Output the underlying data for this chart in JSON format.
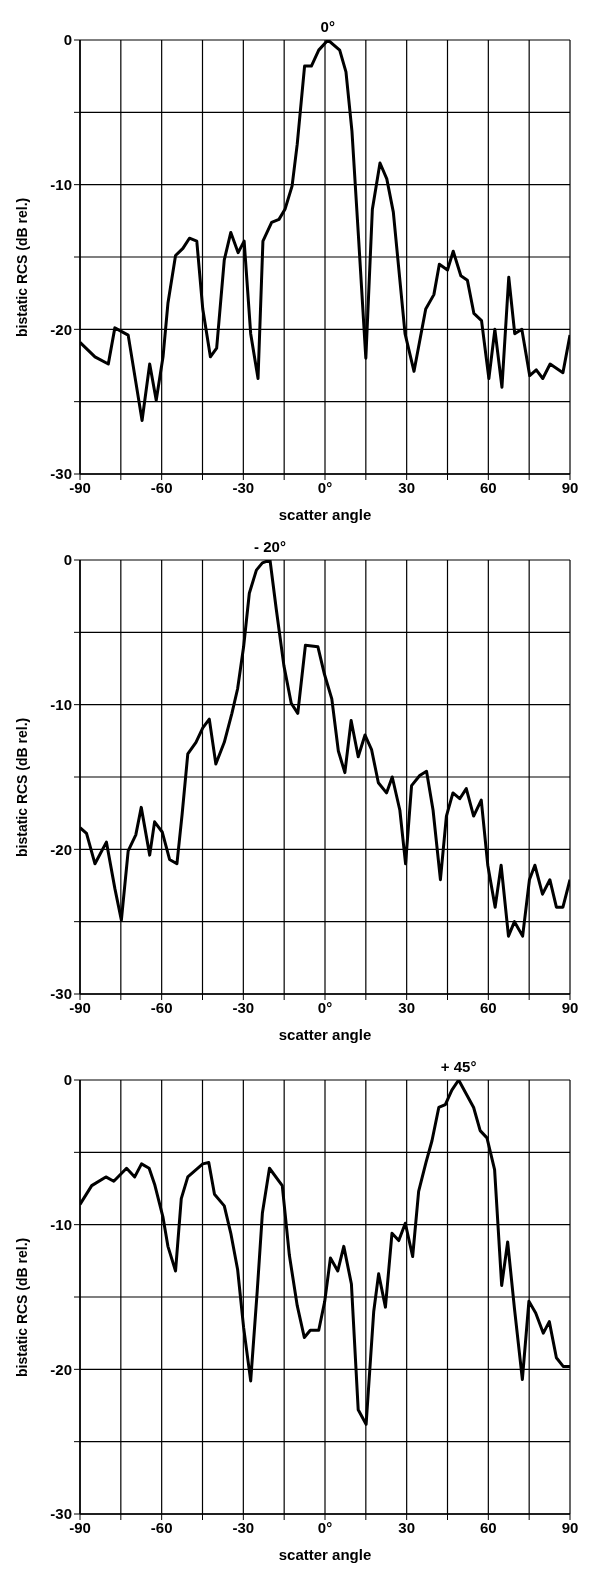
{
  "chart_data": [
    {
      "type": "line",
      "xlabel": "scatter angle",
      "ylabel": "bistatic RCS  (dB rel.)",
      "annotations": [
        {
          "text": "0°",
          "x": 1,
          "y": 0
        }
      ],
      "xlim": [
        -90,
        90
      ],
      "ylim": [
        -30,
        0
      ],
      "xticks": [
        -90,
        {
          "value": -75,
          "label": null
        },
        -60,
        {
          "value": -45,
          "label": null
        },
        -30,
        {
          "value": -15,
          "label": null
        },
        {
          "value": 0,
          "label": "0°"
        },
        {
          "value": 15,
          "label": null
        },
        30,
        {
          "value": 45,
          "label": null
        },
        60,
        {
          "value": 75,
          "label": null
        },
        90
      ],
      "yticks": [
        -30,
        {
          "value": -25,
          "label": null
        },
        -20,
        {
          "value": -15,
          "label": null
        },
        -10,
        {
          "value": -5,
          "label": null
        },
        0
      ],
      "grid": true,
      "marker": "none",
      "line_style": "solid",
      "series": [
        {
          "color": "#000000",
          "x": [
            -90,
            -84.5,
            -79.6,
            -77.2,
            -72.3,
            -67.2,
            -64.4,
            -62,
            -59.5,
            -57.7,
            -54.9,
            -52.2,
            -49.8,
            -47.1,
            -44.9,
            -42.1,
            -39.8,
            -37,
            -34.6,
            -31.9,
            -29.7,
            -27.3,
            -24.6,
            -22.8,
            -19.6,
            -16.9,
            -14.7,
            -12.1,
            -10.2,
            -7.5,
            -5,
            -2.3,
            1.1,
            5.4,
            7.7,
            9.9,
            12.3,
            15,
            17.4,
            20.2,
            22.7,
            25.1,
            29.4,
            32.7,
            37,
            40,
            42,
            45,
            47.1,
            49.9,
            52.3,
            54.7,
            57.5,
            60.2,
            62.4,
            65,
            67.5,
            69.7,
            72.3,
            75.2,
            77.6,
            80,
            82.7,
            87.4,
            90
          ],
          "values": [
            -20.9,
            -21.9,
            -22.4,
            -19.9,
            -20.4,
            -26.3,
            -22.4,
            -24.9,
            -21.9,
            -18.2,
            -14.9,
            -14.4,
            -13.7,
            -13.9,
            -18.6,
            -21.9,
            -21.3,
            -15.2,
            -13.3,
            -14.7,
            -13.9,
            -20.3,
            -23.4,
            -13.9,
            -12.6,
            -12.4,
            -11.7,
            -10.1,
            -7.2,
            -1.8,
            -1.8,
            -0.7,
            0,
            -0.7,
            -2.2,
            -6.3,
            -13.6,
            -22,
            -11.7,
            -8.5,
            -9.6,
            -11.9,
            -20.3,
            -22.9,
            -18.6,
            -17.6,
            -15.5,
            -15.9,
            -14.6,
            -16.3,
            -16.6,
            -18.9,
            -19.4,
            -23.4,
            -20,
            -24,
            -16.4,
            -20.3,
            -20,
            -23.2,
            -22.8,
            -23.4,
            -22.4,
            -23,
            -20.4
          ]
        }
      ]
    },
    {
      "type": "line",
      "xlabel": "scatter angle",
      "ylabel": "bistatic RCS  (dB rel.)",
      "annotations": [
        {
          "text": "- 20°",
          "x": -20.2,
          "y": 0
        }
      ],
      "xlim": [
        -90,
        90
      ],
      "ylim": [
        -30,
        0
      ],
      "xticks": [
        -90,
        {
          "value": -75,
          "label": null
        },
        -60,
        {
          "value": -45,
          "label": null
        },
        -30,
        {
          "value": -15,
          "label": null
        },
        {
          "value": 0,
          "label": "0°"
        },
        {
          "value": 15,
          "label": null
        },
        30,
        {
          "value": 45,
          "label": null
        },
        60,
        {
          "value": 75,
          "label": null
        },
        90
      ],
      "yticks": [
        -30,
        {
          "value": -25,
          "label": null
        },
        -20,
        {
          "value": -15,
          "label": null
        },
        -10,
        {
          "value": -5,
          "label": null
        },
        0
      ],
      "grid": true,
      "marker": "none",
      "line_style": "solid",
      "series": [
        {
          "color": "#000000",
          "x": [
            -90,
            -87.6,
            -84.5,
            -80.3,
            -77.2,
            -74.8,
            -72.3,
            -69.5,
            -67.5,
            -64.4,
            -62.6,
            -59.8,
            -57.1,
            -54.4,
            -52.5,
            -50.4,
            -47.4,
            -44.9,
            -42.5,
            -40.1,
            -37,
            -34.2,
            -32.1,
            -29.9,
            -27.8,
            -25.2,
            -23,
            -20.2,
            -17.9,
            -15.1,
            -12.4,
            -10,
            -7.2,
            -2.6,
            -0.2,
            2.5,
            4.9,
            7.3,
            9.6,
            12.2,
            14.7,
            17.1,
            19.6,
            22.6,
            24.7,
            27.5,
            29.6,
            31.8,
            34.8,
            37.3,
            39.7,
            42.4,
            44.6,
            47,
            49.5,
            51.9,
            54.6,
            57.4,
            59.8,
            62.5,
            64.7,
            67.4,
            69.6,
            72.6,
            75.1,
            77.1,
            79.9,
            82.6,
            85,
            87.4,
            90
          ],
          "values": [
            -18.5,
            -18.9,
            -21,
            -19.5,
            -22.7,
            -24.9,
            -20.1,
            -19,
            -17.1,
            -20.4,
            -18.1,
            -18.8,
            -20.7,
            -21,
            -17.6,
            -13.4,
            -12.6,
            -11.6,
            -11,
            -14.1,
            -12.6,
            -10.6,
            -8.9,
            -6,
            -2.3,
            -0.7,
            -0.2,
            0,
            -3.4,
            -7.3,
            -9.9,
            -10.6,
            -5.9,
            -6,
            -7.9,
            -9.6,
            -13.2,
            -14.7,
            -11.1,
            -13.6,
            -12.1,
            -13.1,
            -15.4,
            -16.1,
            -15,
            -17.3,
            -21,
            -15.6,
            -14.9,
            -14.6,
            -17.3,
            -22.1,
            -17.7,
            -16.1,
            -16.5,
            -15.8,
            -17.7,
            -16.6,
            -21.1,
            -24,
            -21.1,
            -26,
            -25,
            -26,
            -22.1,
            -21.1,
            -23.1,
            -22.1,
            -24,
            -24,
            -22.1
          ]
        }
      ]
    },
    {
      "type": "line",
      "xlabel": "scatter angle",
      "ylabel": "bistatic RCS  (dB rel.)",
      "annotations": [
        {
          "text": "+ 45°",
          "x": 49.1,
          "y": 0
        }
      ],
      "xlim": [
        -90,
        90
      ],
      "ylim": [
        -30,
        0
      ],
      "xticks": [
        -90,
        {
          "value": -75,
          "label": null
        },
        -60,
        {
          "value": -45,
          "label": null
        },
        -30,
        {
          "value": -15,
          "label": null
        },
        {
          "value": 0,
          "label": "0°"
        },
        {
          "value": 15,
          "label": null
        },
        30,
        {
          "value": 45,
          "label": null
        },
        60,
        {
          "value": 75,
          "label": null
        },
        90
      ],
      "yticks": [
        -30,
        {
          "value": -25,
          "label": null
        },
        -20,
        {
          "value": -15,
          "label": null
        },
        -10,
        {
          "value": -5,
          "label": null
        },
        0
      ],
      "grid": true,
      "marker": "none",
      "line_style": "solid",
      "series": [
        {
          "color": "#000000",
          "x": [
            -90,
            -85.7,
            -80.5,
            -77.6,
            -72.9,
            -69.9,
            -67.4,
            -64.6,
            -62.6,
            -59.5,
            -57.7,
            -54.9,
            -52.8,
            -50.4,
            -44.9,
            -42.7,
            -40.6,
            -37,
            -34.6,
            -32.1,
            -29.9,
            -27.3,
            -24.9,
            -23,
            -20.4,
            -15.7,
            -13.1,
            -10.2,
            -7.6,
            -5.4,
            -2.3,
            -0.1,
            2,
            4.7,
            6.9,
            9.7,
            12.2,
            15.1,
            17.9,
            19.7,
            22.2,
            24.6,
            27.1,
            29.5,
            32.2,
            34.4,
            37.1,
            39.3,
            41.8,
            44.2,
            46.6,
            49.1,
            54.6,
            57,
            59.5,
            62.3,
            64.9,
            67.1,
            69.6,
            72.5,
            74.9,
            77.4,
            80.2,
            82.4,
            85,
            87.5,
            90
          ],
          "values": [
            -8.6,
            -7.3,
            -6.7,
            -7,
            -6.1,
            -6.7,
            -5.8,
            -6.1,
            -7.2,
            -9.5,
            -11.5,
            -13.2,
            -8.2,
            -6.7,
            -5.8,
            -5.7,
            -7.9,
            -8.7,
            -10.6,
            -13.1,
            -17.1,
            -20.8,
            -14.6,
            -9.2,
            -6.1,
            -7.3,
            -12.1,
            -15.6,
            -17.8,
            -17.3,
            -17.3,
            -15.3,
            -12.3,
            -13.2,
            -11.5,
            -14.1,
            -22.8,
            -23.8,
            -16,
            -13.4,
            -15.7,
            -10.6,
            -11.1,
            -9.9,
            -12.2,
            -7.7,
            -5.7,
            -4.2,
            -1.9,
            -1.7,
            -0.7,
            0,
            -1.9,
            -3.5,
            -4,
            -6.2,
            -14.2,
            -11.2,
            -15.8,
            -20.7,
            -15.3,
            -16.1,
            -17.5,
            -16.7,
            -19.2,
            -19.8,
            -19.8
          ]
        }
      ]
    }
  ]
}
